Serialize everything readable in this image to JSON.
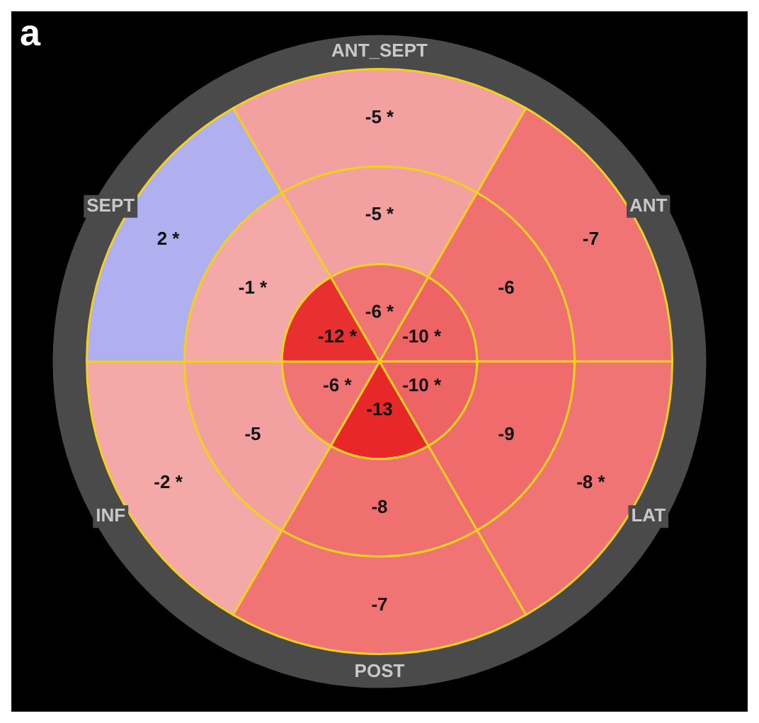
{
  "chart_data": {
    "type": "other",
    "categories": [
      "ANT_SEPT",
      "ANT",
      "LAT",
      "POST",
      "INF",
      "SEPT"
    ],
    "series": [
      {
        "values": [
          -5,
          -7,
          -8,
          -7,
          -2,
          2
        ],
        "value_labels": [
          "-5 *",
          "-7",
          "-8 *",
          "-7",
          "-2 *",
          "2 *"
        ],
        "colors": [
          "#f3a0a0",
          "#f07474",
          "#f07474",
          "#f07474",
          "#f4a8a8",
          "#b0b0f0"
        ]
      },
      {
        "values": [
          -5,
          -6,
          -9,
          -8,
          -5,
          -1
        ],
        "value_labels": [
          "-5 *",
          "-6",
          "-9",
          "-8",
          "-5",
          "-1 *"
        ],
        "colors": [
          "#f3a0a0",
          "#f07070",
          "#f06c6c",
          "#f07070",
          "#f3a0a0",
          "#f4a8a8"
        ]
      },
      {
        "values": [
          -6,
          -10,
          -10,
          -13,
          -6,
          -12
        ],
        "value_labels": [
          "-6 *",
          "-10 *",
          "-10 *",
          "-13",
          "-6 *",
          "-12 *"
        ],
        "colors": [
          "#f07474",
          "#ee6464",
          "#ee6464",
          "#e82828",
          "#f07474",
          "#e83030"
        ]
      }
    ],
    "annotations": [
      "a"
    ]
  }
}
